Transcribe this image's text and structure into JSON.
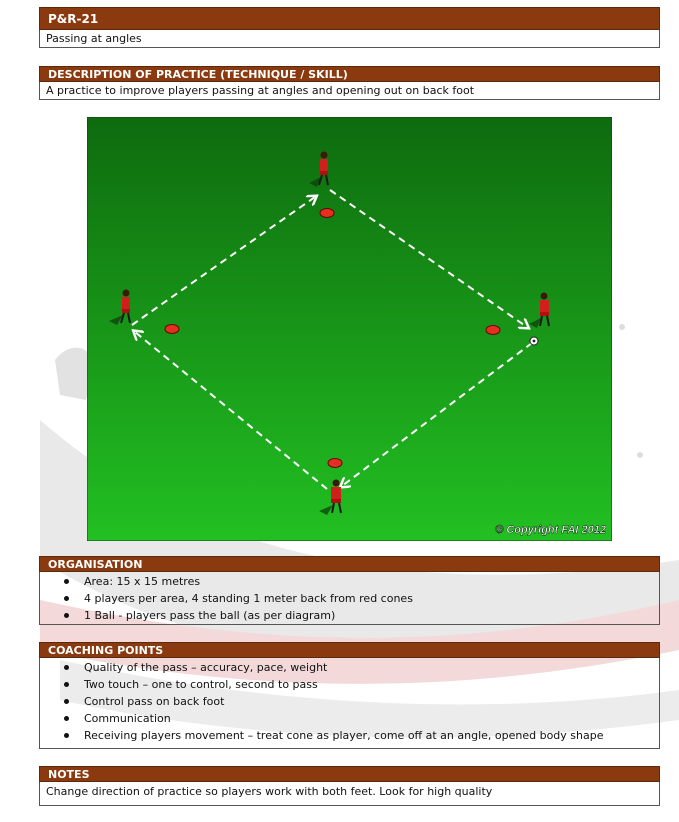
{
  "header": {
    "code": "P&R-21",
    "title": "Passing at angles"
  },
  "description": {
    "heading": "DESCRIPTION OF PRACTICE (TECHNIQUE / SKILL)",
    "text": "A practice to improve players passing at angles and opening out on back foot"
  },
  "diagram": {
    "copyright": "© Copyright FAI 2012",
    "pitch_color_top": "#0e6b0e",
    "pitch_color_bottom": "#22c022",
    "player_color": "#d0201c",
    "cone_color": "#e53020"
  },
  "organisation": {
    "heading": "ORGANISATION",
    "items": [
      "Area: 15 x 15 metres",
      "4 players per area, 4 standing 1 meter back from red cones",
      "1 Ball - players pass the ball (as per diagram)"
    ]
  },
  "coaching": {
    "heading": "COACHING POINTS",
    "items": [
      "Quality of the pass – accuracy, pace, weight",
      "Two touch – one to control, second to pass",
      "Control pass on back foot",
      "Communication",
      "Receiving players movement – treat cone as player, come off at an angle, opened body shape"
    ]
  },
  "notes": {
    "heading": "NOTES",
    "text": "Change direction of practice so players work with both feet. Look for high quality"
  }
}
